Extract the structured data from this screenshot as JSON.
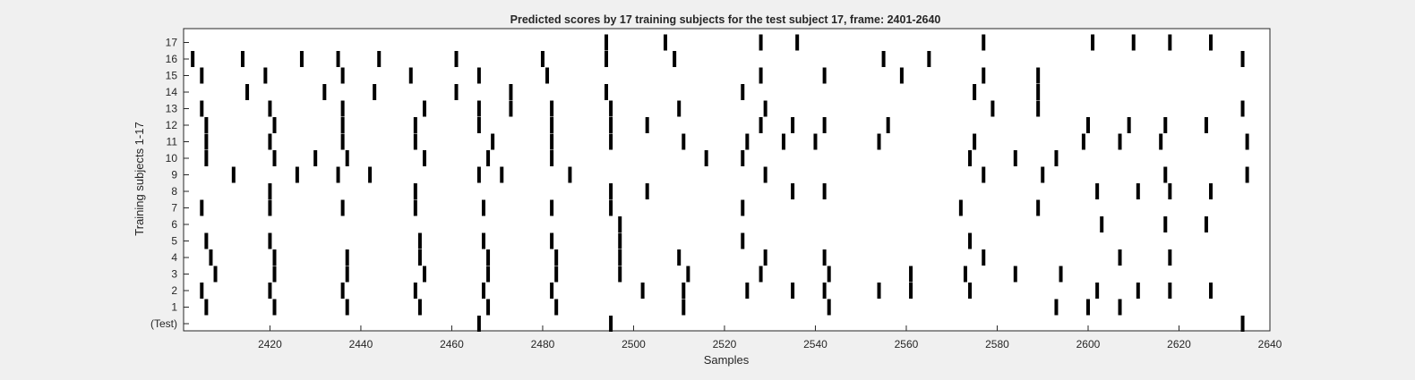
{
  "chart_data": {
    "type": "scatter",
    "title": "Predicted scores by 17 training subjects for the test subject 17, frame: 2401-2640",
    "xlabel": "Samples",
    "ylabel": "Training subjects 1-17",
    "xlim": [
      2401,
      2640
    ],
    "xticks": [
      2420,
      2440,
      2460,
      2480,
      2500,
      2520,
      2540,
      2560,
      2580,
      2600,
      2620,
      2640
    ],
    "yticklabels": [
      "(Test)",
      "1",
      "2",
      "3",
      "4",
      "5",
      "6",
      "7",
      "8",
      "9",
      "10",
      "11",
      "12",
      "13",
      "14",
      "15",
      "16",
      "17"
    ],
    "grid": false,
    "legend": "none",
    "mark_color": "#000000",
    "rows": [
      {
        "label": "(Test)",
        "x": [
          2466,
          2495,
          2634
        ]
      },
      {
        "label": "1",
        "x": [
          2406,
          2421,
          2437,
          2453,
          2468,
          2483,
          2511,
          2543,
          2593,
          2600,
          2607
        ]
      },
      {
        "label": "2",
        "x": [
          2405,
          2420,
          2436,
          2452,
          2467,
          2482,
          2502,
          2511,
          2525,
          2535,
          2542,
          2554,
          2561,
          2574,
          2602,
          2611,
          2618,
          2627
        ]
      },
      {
        "label": "3",
        "x": [
          2408,
          2421,
          2437,
          2454,
          2468,
          2483,
          2497,
          2512,
          2528,
          2543,
          2561,
          2573,
          2584,
          2594
        ]
      },
      {
        "label": "4",
        "x": [
          2407,
          2421,
          2437,
          2453,
          2468,
          2483,
          2497,
          2510,
          2529,
          2542,
          2577,
          2607,
          2618
        ]
      },
      {
        "label": "5",
        "x": [
          2406,
          2420,
          2453,
          2467,
          2482,
          2497,
          2524,
          2574
        ]
      },
      {
        "label": "6",
        "x": [
          2497,
          2603,
          2617,
          2626
        ]
      },
      {
        "label": "7",
        "x": [
          2405,
          2420,
          2436,
          2452,
          2467,
          2482,
          2495,
          2524,
          2572,
          2589
        ]
      },
      {
        "label": "8",
        "x": [
          2420,
          2452,
          2495,
          2503,
          2535,
          2542,
          2602,
          2611,
          2618,
          2627
        ]
      },
      {
        "label": "9",
        "x": [
          2412,
          2426,
          2435,
          2442,
          2466,
          2471,
          2486,
          2529,
          2577,
          2590,
          2617,
          2635
        ]
      },
      {
        "label": "10",
        "x": [
          2406,
          2421,
          2430,
          2437,
          2454,
          2468,
          2482,
          2516,
          2524,
          2574,
          2584,
          2593
        ]
      },
      {
        "label": "11",
        "x": [
          2406,
          2420,
          2436,
          2452,
          2469,
          2482,
          2495,
          2511,
          2525,
          2533,
          2540,
          2554,
          2575,
          2599,
          2607,
          2616,
          2635
        ]
      },
      {
        "label": "12",
        "x": [
          2406,
          2421,
          2436,
          2452,
          2466,
          2482,
          2495,
          2503,
          2528,
          2535,
          2542,
          2556,
          2600,
          2609,
          2617,
          2626
        ]
      },
      {
        "label": "13",
        "x": [
          2405,
          2420,
          2436,
          2454,
          2466,
          2473,
          2482,
          2495,
          2510,
          2529,
          2579,
          2589,
          2634
        ]
      },
      {
        "label": "14",
        "x": [
          2415,
          2432,
          2443,
          2461,
          2473,
          2494,
          2524,
          2575,
          2589
        ]
      },
      {
        "label": "15",
        "x": [
          2405,
          2419,
          2436,
          2451,
          2466,
          2481,
          2528,
          2542,
          2559,
          2577,
          2589
        ]
      },
      {
        "label": "16",
        "x": [
          2403,
          2414,
          2427,
          2435,
          2444,
          2461,
          2480,
          2494,
          2509,
          2555,
          2565,
          2634
        ]
      },
      {
        "label": "17",
        "x": [
          2494,
          2507,
          2528,
          2536,
          2577,
          2601,
          2610,
          2618,
          2627
        ]
      }
    ]
  }
}
